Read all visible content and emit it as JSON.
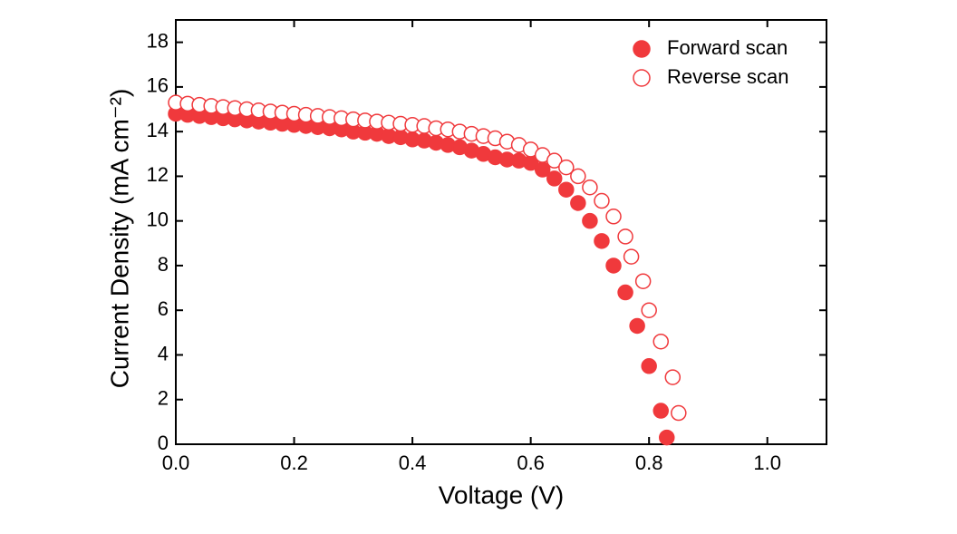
{
  "chart_data": {
    "type": "scatter",
    "xlabel": "Voltage (V)",
    "ylabel": "Current Density (mA cm⁻²)",
    "xlim": [
      0,
      1.1
    ],
    "xticks": [
      {
        "value": 0,
        "label": "0.0"
      },
      0.2,
      0.4,
      0.6,
      0.8,
      {
        "value": 1,
        "label": "1.0"
      }
    ],
    "ylim": [
      0,
      19
    ],
    "yticks": [
      0,
      2,
      4,
      6,
      8,
      10,
      12,
      14,
      16,
      18
    ],
    "legend": "upper right",
    "series": [
      {
        "name": "Forward scan",
        "color": "#f0393c",
        "marker": "filled",
        "x": [
          0,
          0.02,
          0.04,
          0.06,
          0.08,
          0.1,
          0.12,
          0.14,
          0.16,
          0.18,
          0.2,
          0.22,
          0.24,
          0.26,
          0.28,
          0.3,
          0.32,
          0.34,
          0.36,
          0.38,
          0.4,
          0.42,
          0.44,
          0.46,
          0.48,
          0.5,
          0.52,
          0.54,
          0.56,
          0.58,
          0.6,
          0.62,
          0.64,
          0.66,
          0.68,
          0.7,
          0.72,
          0.74,
          0.76,
          0.78,
          0.8,
          0.82,
          0.83
        ],
        "values": [
          14.8,
          14.75,
          14.7,
          14.65,
          14.6,
          14.55,
          14.5,
          14.45,
          14.4,
          14.35,
          14.3,
          14.25,
          14.2,
          14.15,
          14.1,
          14.0,
          13.95,
          13.9,
          13.8,
          13.75,
          13.65,
          13.6,
          13.5,
          13.4,
          13.3,
          13.15,
          13.0,
          12.85,
          12.75,
          12.7,
          12.6,
          12.3,
          11.9,
          11.4,
          10.8,
          10.0,
          9.1,
          8.0,
          6.8,
          5.3,
          3.5,
          1.5,
          0.3
        ]
      },
      {
        "name": "Reverse scan",
        "color": "#f0393c",
        "marker": "open",
        "x": [
          0,
          0.02,
          0.04,
          0.06,
          0.08,
          0.1,
          0.12,
          0.14,
          0.16,
          0.18,
          0.2,
          0.22,
          0.24,
          0.26,
          0.28,
          0.3,
          0.32,
          0.34,
          0.36,
          0.38,
          0.4,
          0.42,
          0.44,
          0.46,
          0.48,
          0.5,
          0.52,
          0.54,
          0.56,
          0.58,
          0.6,
          0.62,
          0.64,
          0.66,
          0.68,
          0.7,
          0.72,
          0.74,
          0.76,
          0.77,
          0.79,
          0.8,
          0.82,
          0.84,
          0.85
        ],
        "values": [
          15.3,
          15.25,
          15.2,
          15.15,
          15.1,
          15.05,
          15.0,
          14.95,
          14.9,
          14.85,
          14.8,
          14.75,
          14.7,
          14.65,
          14.6,
          14.55,
          14.5,
          14.45,
          14.4,
          14.35,
          14.3,
          14.25,
          14.15,
          14.1,
          14.0,
          13.9,
          13.8,
          13.7,
          13.55,
          13.4,
          13.2,
          12.95,
          12.7,
          12.4,
          12.0,
          11.5,
          10.9,
          10.2,
          9.3,
          8.4,
          7.3,
          6.0,
          4.6,
          3.0,
          1.4
        ]
      }
    ]
  }
}
